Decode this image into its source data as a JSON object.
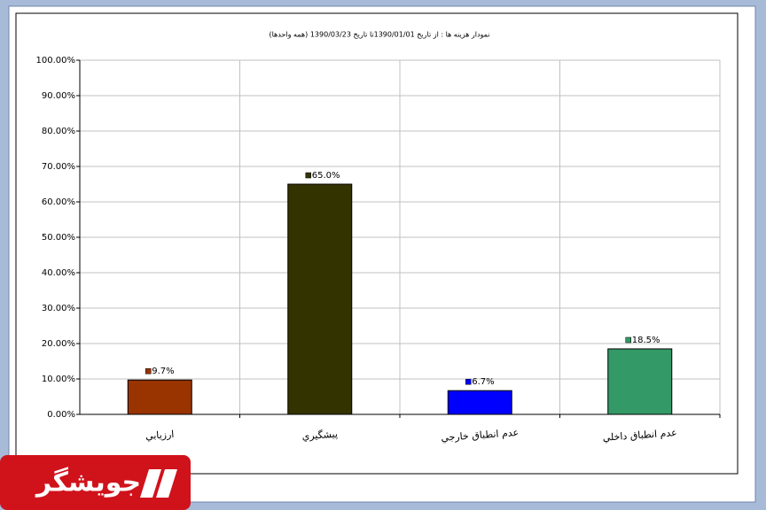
{
  "chart_data": {
    "type": "bar",
    "title": "نمودار هزينه ها : از تاريخ 1390/01/01تا تاريخ 1390/03/23 (همه واحدها)",
    "categories": [
      "ارزيابي",
      "پيشگيري",
      "عدم انطباق خارجي",
      "عدم انطباق داخلي"
    ],
    "values": [
      9.7,
      65.0,
      6.7,
      18.5
    ],
    "value_labels": [
      "9.7%",
      "65.0%",
      "6.7%",
      "18.5%"
    ],
    "colors": [
      "#993300",
      "#333300",
      "#0000ff",
      "#339966"
    ],
    "ylim": [
      0,
      100
    ],
    "yticks": [
      {
        "value": 0,
        "label": "0.00%"
      },
      {
        "value": 10,
        "label": "10.00%"
      },
      {
        "value": 20,
        "label": "20.00%"
      },
      {
        "value": 30,
        "label": "30.00%"
      },
      {
        "value": 40,
        "label": "40.00%"
      },
      {
        "value": 50,
        "label": "50.00%"
      },
      {
        "value": 60,
        "label": "60.00%"
      },
      {
        "value": 70,
        "label": "70.00%"
      },
      {
        "value": 80,
        "label": "80.00%"
      },
      {
        "value": 90,
        "label": "90.00%"
      },
      {
        "value": 100,
        "label": "100.00%"
      }
    ],
    "grid": true
  },
  "watermark": "جويشگر"
}
